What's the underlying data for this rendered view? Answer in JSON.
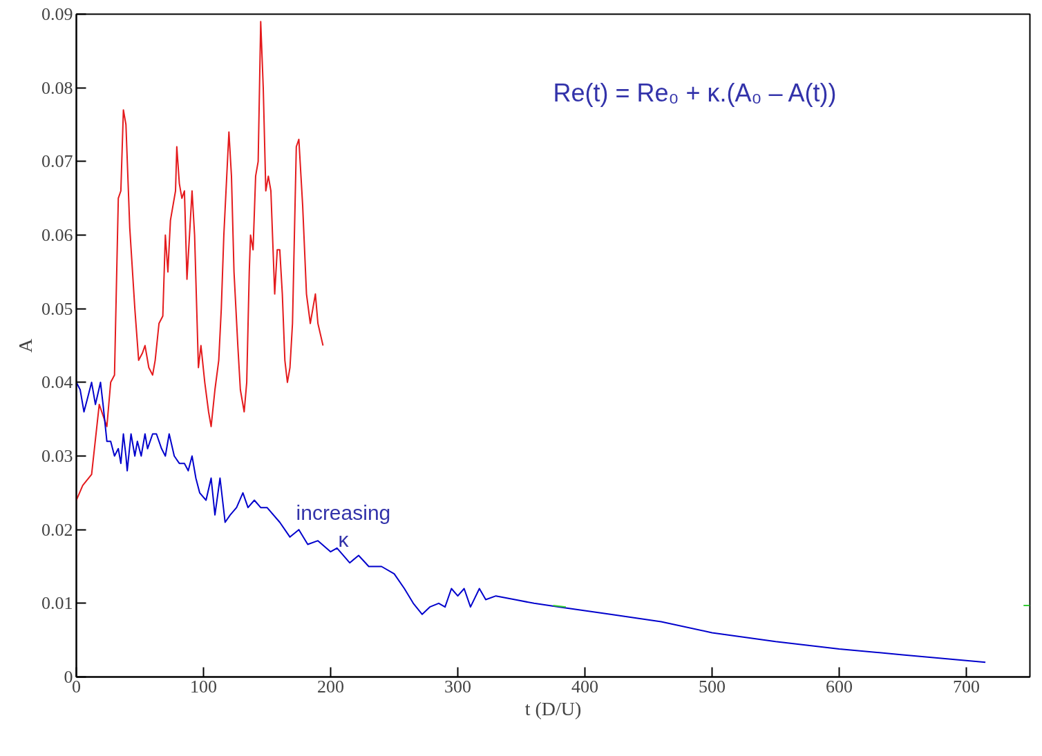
{
  "chart_data": {
    "type": "line",
    "xlabel": "t (D/U)",
    "ylabel": "A",
    "xlim": [
      0,
      750
    ],
    "ylim": [
      0,
      0.09
    ],
    "xticks": [
      0,
      100,
      200,
      300,
      400,
      500,
      600,
      700
    ],
    "yticks": [
      0,
      0.01,
      0.02,
      0.03,
      0.04,
      0.05,
      0.06,
      0.07,
      0.08,
      0.09
    ],
    "grid": false,
    "marker": "none",
    "line_style": "solid",
    "annotations": [
      "Re(t) = Re₀ + κ.(A₀ – A(t))",
      "increasing\nκ"
    ],
    "series": [
      {
        "color": "#e41a1c",
        "x": [
          0,
          5,
          12,
          18,
          24,
          27,
          30,
          33,
          35,
          37,
          39,
          42,
          46,
          49,
          52,
          54,
          57,
          60,
          62,
          65,
          68,
          70,
          72,
          74,
          78,
          79,
          81,
          83,
          85,
          87,
          89,
          91,
          93,
          96,
          98,
          101,
          104,
          106,
          109,
          112,
          114,
          116,
          120,
          122,
          124,
          127,
          129,
          132,
          134,
          136,
          137,
          139,
          141,
          143,
          145,
          147,
          149,
          151,
          153,
          156,
          158,
          160,
          162,
          164,
          166,
          168,
          170,
          173,
          175,
          178,
          181,
          184,
          186,
          188,
          190,
          194
        ],
        "values": [
          0.024,
          0.026,
          0.0275,
          0.037,
          0.034,
          0.04,
          0.041,
          0.065,
          0.066,
          0.077,
          0.075,
          0.061,
          0.05,
          0.043,
          0.044,
          0.045,
          0.042,
          0.041,
          0.043,
          0.048,
          0.049,
          0.06,
          0.055,
          0.062,
          0.066,
          0.072,
          0.067,
          0.065,
          0.066,
          0.054,
          0.06,
          0.066,
          0.06,
          0.042,
          0.045,
          0.04,
          0.036,
          0.034,
          0.039,
          0.043,
          0.05,
          0.06,
          0.074,
          0.068,
          0.055,
          0.045,
          0.039,
          0.036,
          0.04,
          0.055,
          0.06,
          0.058,
          0.068,
          0.07,
          0.089,
          0.08,
          0.066,
          0.068,
          0.066,
          0.052,
          0.058,
          0.058,
          0.052,
          0.043,
          0.04,
          0.042,
          0.048,
          0.072,
          0.073,
          0.064,
          0.052,
          0.048,
          0.05,
          0.052,
          0.048,
          0.045
        ]
      },
      {
        "color": "#0000cc",
        "x": [
          0,
          3,
          6,
          9,
          12,
          15,
          19,
          21,
          24,
          27,
          30,
          33,
          35,
          37,
          39,
          40,
          43,
          46,
          48,
          51,
          54,
          56,
          60,
          63,
          67,
          70,
          73,
          77,
          81,
          85,
          88,
          91,
          94,
          97,
          102,
          106,
          109,
          113,
          117,
          121,
          126,
          131,
          135,
          140,
          145,
          150,
          160,
          168,
          175,
          182,
          190,
          200,
          205,
          215,
          222,
          230,
          240,
          250,
          258,
          265,
          272,
          278,
          285,
          290,
          295,
          300,
          305,
          310,
          317,
          322,
          330,
          345,
          360,
          380,
          420,
          460,
          500,
          550,
          600,
          650,
          715
        ],
        "values": [
          0.04,
          0.039,
          0.036,
          0.038,
          0.04,
          0.037,
          0.04,
          0.037,
          0.032,
          0.032,
          0.03,
          0.031,
          0.029,
          0.033,
          0.03,
          0.028,
          0.033,
          0.03,
          0.032,
          0.03,
          0.033,
          0.031,
          0.033,
          0.033,
          0.031,
          0.03,
          0.033,
          0.03,
          0.029,
          0.029,
          0.028,
          0.03,
          0.027,
          0.025,
          0.024,
          0.027,
          0.022,
          0.027,
          0.021,
          0.022,
          0.023,
          0.025,
          0.023,
          0.024,
          0.023,
          0.023,
          0.021,
          0.019,
          0.02,
          0.018,
          0.0185,
          0.017,
          0.0175,
          0.0155,
          0.0165,
          0.015,
          0.015,
          0.014,
          0.012,
          0.01,
          0.0085,
          0.0095,
          0.01,
          0.0095,
          0.012,
          0.011,
          0.012,
          0.0095,
          0.012,
          0.0105,
          0.011,
          0.0105,
          0.01,
          0.0095,
          0.0085,
          0.0075,
          0.006,
          0.0048,
          0.0038,
          0.003,
          0.002
        ]
      },
      {
        "color": "#33cc33",
        "x": [
          375,
          385,
          386,
          745,
          750
        ],
        "values": [
          0.0097,
          0.0095,
          null,
          0.0097,
          0.0097
        ]
      }
    ]
  }
}
